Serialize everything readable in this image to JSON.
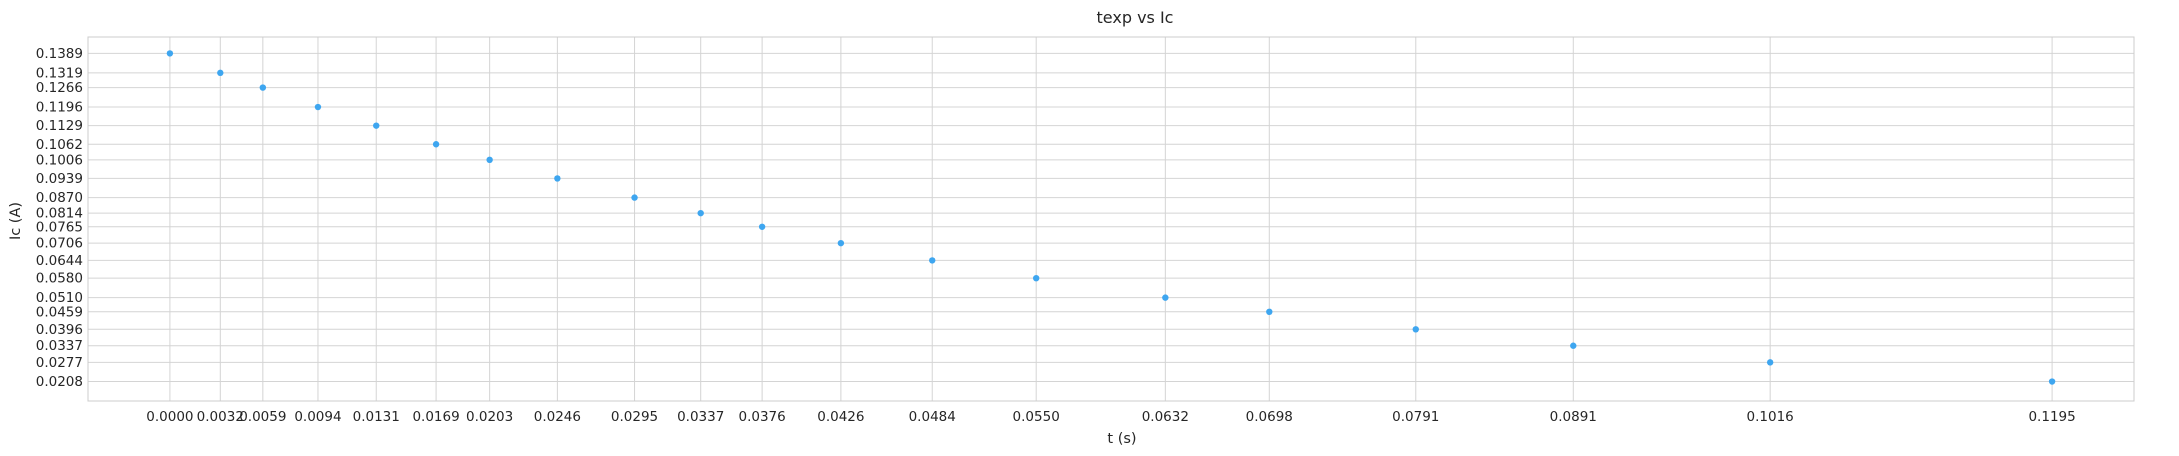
{
  "chart_data": {
    "type": "scatter",
    "title": "texp vs Ic",
    "xlabel": "t (s)",
    "ylabel": "Ic (A)",
    "x_ticks": [
      "0.0000",
      "0.0032",
      "0.0059",
      "0.0094",
      "0.0131",
      "0.0169",
      "0.0203",
      "0.0246",
      "0.0295",
      "0.0337",
      "0.0376",
      "0.0426",
      "0.0484",
      "0.0550",
      "0.0632",
      "0.0698",
      "0.0791",
      "0.0891",
      "0.1016",
      "0.1195"
    ],
    "y_ticks": [
      "0.1389",
      "0.1319",
      "0.1266",
      "0.1196",
      "0.1129",
      "0.1062",
      "0.1006",
      "0.0939",
      "0.0870",
      "0.0814",
      "0.0765",
      "0.0706",
      "0.0644",
      "0.0580",
      "0.0510",
      "0.0459",
      "0.0396",
      "0.0337",
      "0.0277",
      "0.0208"
    ],
    "x": [
      0.0,
      0.0032,
      0.0059,
      0.0094,
      0.0131,
      0.0169,
      0.0203,
      0.0246,
      0.0295,
      0.0337,
      0.0376,
      0.0426,
      0.0484,
      0.055,
      0.0632,
      0.0698,
      0.0791,
      0.0891,
      0.1016,
      0.1195
    ],
    "y": [
      0.1389,
      0.1319,
      0.1266,
      0.1196,
      0.1129,
      0.1062,
      0.1006,
      0.0939,
      0.087,
      0.0814,
      0.0765,
      0.0706,
      0.0644,
      0.058,
      0.051,
      0.0459,
      0.0396,
      0.0337,
      0.0277,
      0.0208
    ],
    "xlim": [
      -0.0052,
      0.1247
    ],
    "ylim": [
      0.0138,
      0.1448
    ],
    "grid": true,
    "marker_color": "#3ea6f0",
    "grid_color": "#d4d4d4"
  }
}
